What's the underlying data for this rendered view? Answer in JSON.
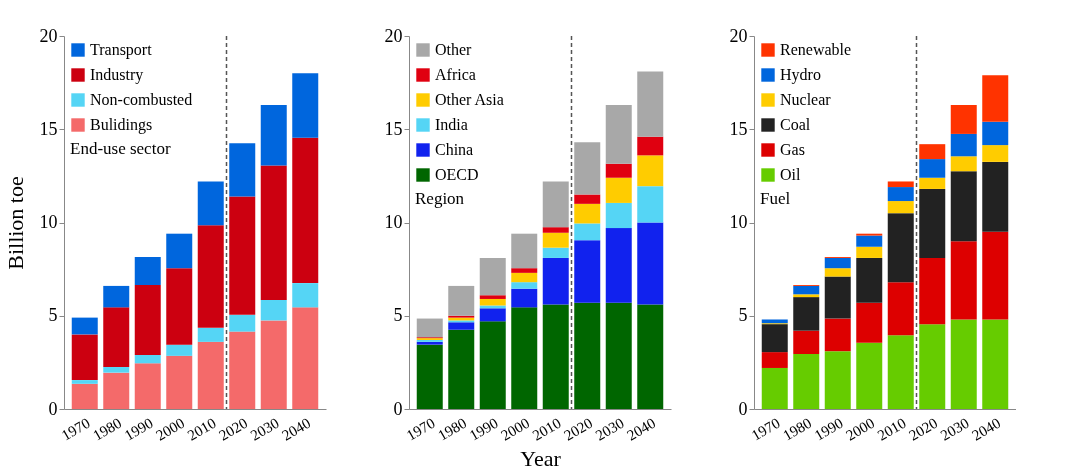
{
  "chart_data": [
    {
      "type": "bar",
      "stacked": true,
      "ylabel": "Billion toe",
      "legend_title": "End-use sector",
      "legend": "top left",
      "grid": false,
      "x": [
        1970,
        1980,
        1990,
        2000,
        2010,
        2020,
        2030,
        2040
      ],
      "xlim": [
        1965,
        2045
      ],
      "xticks": [
        1970,
        1980,
        1990,
        2000,
        2010,
        2020,
        2030,
        2040
      ],
      "ylim": [
        0,
        20
      ],
      "yticks": [
        0,
        5,
        10,
        15,
        20
      ],
      "ref_lines": [
        {
          "axis": "x",
          "value": 2015,
          "color": "#555555",
          "line_style": "dashed"
        }
      ],
      "series": [
        {
          "name": "Bulidings",
          "color": "#f46a6a",
          "values": [
            1.35,
            1.95,
            2.45,
            2.85,
            3.6,
            4.15,
            4.75,
            5.45
          ]
        },
        {
          "name": "Non-combusted",
          "color": "#55d5f5",
          "values": [
            0.2,
            0.3,
            0.45,
            0.6,
            0.75,
            0.9,
            1.1,
            1.3
          ]
        },
        {
          "name": "Industry",
          "color": "#cc0010",
          "values": [
            2.45,
            3.2,
            3.75,
            4.1,
            5.5,
            6.35,
            7.2,
            7.8
          ]
        },
        {
          "name": "Transport",
          "color": "#0066dd",
          "values": [
            0.9,
            1.15,
            1.5,
            1.85,
            2.35,
            2.85,
            3.25,
            3.45
          ]
        }
      ]
    },
    {
      "type": "bar",
      "stacked": true,
      "xlabel": "Year",
      "legend_title": "Region",
      "legend": "top left",
      "grid": false,
      "x": [
        1970,
        1980,
        1990,
        2000,
        2010,
        2020,
        2030,
        2040
      ],
      "xlim": [
        1965,
        2045
      ],
      "xticks": [
        1970,
        1980,
        1990,
        2000,
        2010,
        2020,
        2030,
        2040
      ],
      "ylim": [
        0,
        20
      ],
      "yticks": [
        0,
        5,
        10,
        15,
        20
      ],
      "ref_lines": [
        {
          "axis": "x",
          "value": 2015,
          "color": "#555555",
          "line_style": "dashed"
        }
      ],
      "series": [
        {
          "name": "OECD",
          "color": "#006600",
          "values": [
            3.45,
            4.25,
            4.7,
            5.45,
            5.6,
            5.7,
            5.7,
            5.6
          ]
        },
        {
          "name": "China",
          "color": "#1122ee",
          "values": [
            0.15,
            0.4,
            0.7,
            1.0,
            2.5,
            3.35,
            4.0,
            4.4
          ]
        },
        {
          "name": "India",
          "color": "#55d5f5",
          "values": [
            0.1,
            0.1,
            0.15,
            0.35,
            0.55,
            0.9,
            1.35,
            1.95
          ]
        },
        {
          "name": "Other Asia",
          "color": "#ffcc00",
          "values": [
            0.1,
            0.15,
            0.35,
            0.5,
            0.8,
            1.05,
            1.35,
            1.65
          ]
        },
        {
          "name": "Africa",
          "color": "#e00010",
          "values": [
            0.05,
            0.1,
            0.2,
            0.25,
            0.3,
            0.5,
            0.75,
            1.0
          ]
        },
        {
          "name": "Other",
          "color": "#a8a8a8",
          "values": [
            1.0,
            1.6,
            2.0,
            1.85,
            2.45,
            2.8,
            3.15,
            3.5
          ]
        }
      ]
    },
    {
      "type": "bar",
      "stacked": true,
      "legend_title": "Fuel",
      "legend": "top left",
      "grid": false,
      "x": [
        1970,
        1980,
        1990,
        2000,
        2010,
        2020,
        2030,
        2040
      ],
      "xlim": [
        1965,
        2045
      ],
      "xticks": [
        1970,
        1980,
        1990,
        2000,
        2010,
        2020,
        2030,
        2040
      ],
      "ylim": [
        0,
        20
      ],
      "yticks": [
        0,
        5,
        10,
        15,
        20
      ],
      "ref_lines": [
        {
          "axis": "x",
          "value": 2015,
          "color": "#555555",
          "line_style": "dashed"
        }
      ],
      "series": [
        {
          "name": "Oil",
          "color": "#66cc00",
          "values": [
            2.2,
            2.95,
            3.1,
            3.55,
            3.95,
            4.55,
            4.8,
            4.8
          ]
        },
        {
          "name": "Gas",
          "color": "#dd0000",
          "values": [
            0.85,
            1.25,
            1.75,
            2.15,
            2.85,
            3.55,
            4.2,
            4.7
          ]
        },
        {
          "name": "Coal",
          "color": "#222222",
          "values": [
            1.5,
            1.8,
            2.25,
            2.4,
            3.7,
            3.7,
            3.75,
            3.75
          ]
        },
        {
          "name": "Nuclear",
          "color": "#ffcc00",
          "values": [
            0.05,
            0.15,
            0.45,
            0.6,
            0.65,
            0.6,
            0.8,
            0.9
          ]
        },
        {
          "name": "Hydro",
          "color": "#0066dd",
          "values": [
            0.2,
            0.45,
            0.55,
            0.6,
            0.75,
            1.0,
            1.2,
            1.25
          ]
        },
        {
          "name": "Renewable",
          "color": "#ff3300",
          "values": [
            null,
            0.05,
            0.05,
            0.1,
            0.3,
            0.8,
            1.55,
            2.5
          ]
        }
      ]
    }
  ]
}
